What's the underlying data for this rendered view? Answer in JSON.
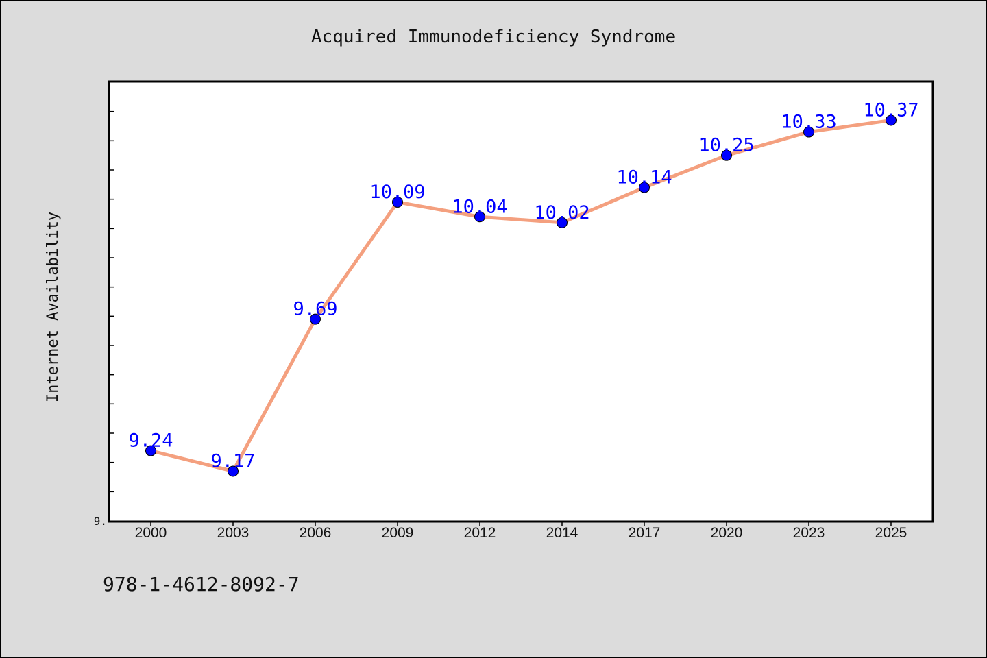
{
  "chart_data": {
    "type": "line",
    "title": "Acquired Immunodeficiency Syndrome",
    "xlabel": "",
    "ylabel": "Internet Availability",
    "categories": [
      "2000",
      "2003",
      "2006",
      "2009",
      "2012",
      "2014",
      "2017",
      "2020",
      "2023",
      "2025"
    ],
    "series": [
      {
        "values": [
          9.24,
          9.17,
          9.69,
          10.09,
          10.04,
          10.02,
          10.14,
          10.25,
          10.33,
          10.37
        ],
        "data_labels": [
          "9.24",
          "9.17",
          "9.69",
          "10.09",
          "10.04",
          "10.02",
          "10.14",
          "10.25",
          "10.33",
          "10.37"
        ]
      }
    ],
    "ylim": [
      9.0,
      10.5
    ],
    "y_tick_labels": [
      {
        "value": 9.0,
        "label": "9."
      }
    ],
    "grid": false,
    "colors": {
      "line": "#f4a07f",
      "marker": "#0000ff",
      "data_label": "#0000ff",
      "plot_background": "#ffffff",
      "figure_background": "#dcdcdc"
    }
  },
  "footer": {
    "isbn": "978-1-4612-8092-7"
  }
}
